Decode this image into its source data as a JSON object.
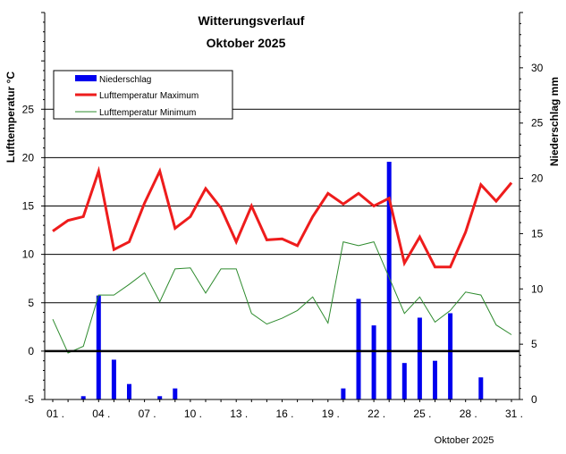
{
  "chart_data": {
    "type": "bar+line",
    "title": "Witterungsverlauf",
    "subtitle": "Oktober 2025",
    "xlabel": "Oktober 2025",
    "ylabel_left": "Lufttemperatur °C",
    "ylabel_right": "Niederschlag  mm",
    "ylim_left": [
      -5,
      35
    ],
    "ylim_right": [
      0,
      35
    ],
    "left_ticks": [
      -5,
      0,
      5,
      10,
      15,
      20,
      25
    ],
    "right_ticks": [
      0,
      5,
      10,
      15,
      20,
      25,
      30
    ],
    "x_range": [
      1,
      31
    ],
    "x_ticks": [
      {
        "day": 1,
        "label": "01 ."
      },
      {
        "day": 4,
        "label": "04 ."
      },
      {
        "day": 7,
        "label": "07 ."
      },
      {
        "day": 10,
        "label": "10 ."
      },
      {
        "day": 13,
        "label": "13 ."
      },
      {
        "day": 16,
        "label": "16 ."
      },
      {
        "day": 19,
        "label": "19 ."
      },
      {
        "day": 22,
        "label": "22 ."
      },
      {
        "day": 25,
        "label": "25 ."
      },
      {
        "day": 28,
        "label": "28 ."
      },
      {
        "day": 31,
        "label": "31 ."
      }
    ],
    "legend": {
      "position": "top-left",
      "items": [
        {
          "name": "Niederschlag",
          "color": "#0000ee",
          "kind": "bar"
        },
        {
          "name": "Lufttemperatur Maximum",
          "color": "#ee1c1c",
          "kind": "thick-line"
        },
        {
          "name": "Lufttemperatur Minimum",
          "color": "#2e8b2e",
          "kind": "thin-line"
        }
      ]
    },
    "days": [
      1,
      2,
      3,
      4,
      5,
      6,
      7,
      8,
      9,
      10,
      11,
      12,
      13,
      14,
      15,
      16,
      17,
      18,
      19,
      20,
      21,
      22,
      23,
      24,
      25,
      26,
      27,
      28,
      29,
      30,
      31
    ],
    "series": [
      {
        "name": "Lufttemperatur Maximum",
        "axis": "left",
        "values": [
          12.4,
          13.5,
          13.9,
          18.6,
          10.5,
          11.3,
          15.3,
          18.6,
          12.7,
          13.9,
          16.8,
          14.8,
          11.3,
          15.0,
          11.5,
          11.6,
          10.9,
          13.9,
          16.3,
          15.2,
          16.3,
          15.0,
          15.8,
          9.1,
          11.8,
          8.7,
          8.7,
          12.3,
          17.2,
          15.5,
          17.4
        ]
      },
      {
        "name": "Lufttemperatur Minimum",
        "axis": "left",
        "values": [
          3.3,
          -0.2,
          0.5,
          5.8,
          5.8,
          6.9,
          8.1,
          5.1,
          8.5,
          8.6,
          6.0,
          8.5,
          8.5,
          3.9,
          2.8,
          3.4,
          4.2,
          5.6,
          2.9,
          11.3,
          10.9,
          11.3,
          7.6,
          3.9,
          5.6,
          3.0,
          4.2,
          6.1,
          5.8,
          2.7,
          1.7
        ]
      },
      {
        "name": "Niederschlag",
        "axis": "right",
        "values": [
          0,
          0,
          0.3,
          9.4,
          3.6,
          1.4,
          0,
          0.3,
          1.0,
          0,
          0,
          0,
          0,
          0,
          0,
          0,
          0,
          0,
          0,
          1.0,
          9.1,
          6.7,
          21.5,
          3.3,
          7.4,
          3.5,
          7.8,
          0,
          2.0,
          0,
          0
        ]
      }
    ]
  }
}
